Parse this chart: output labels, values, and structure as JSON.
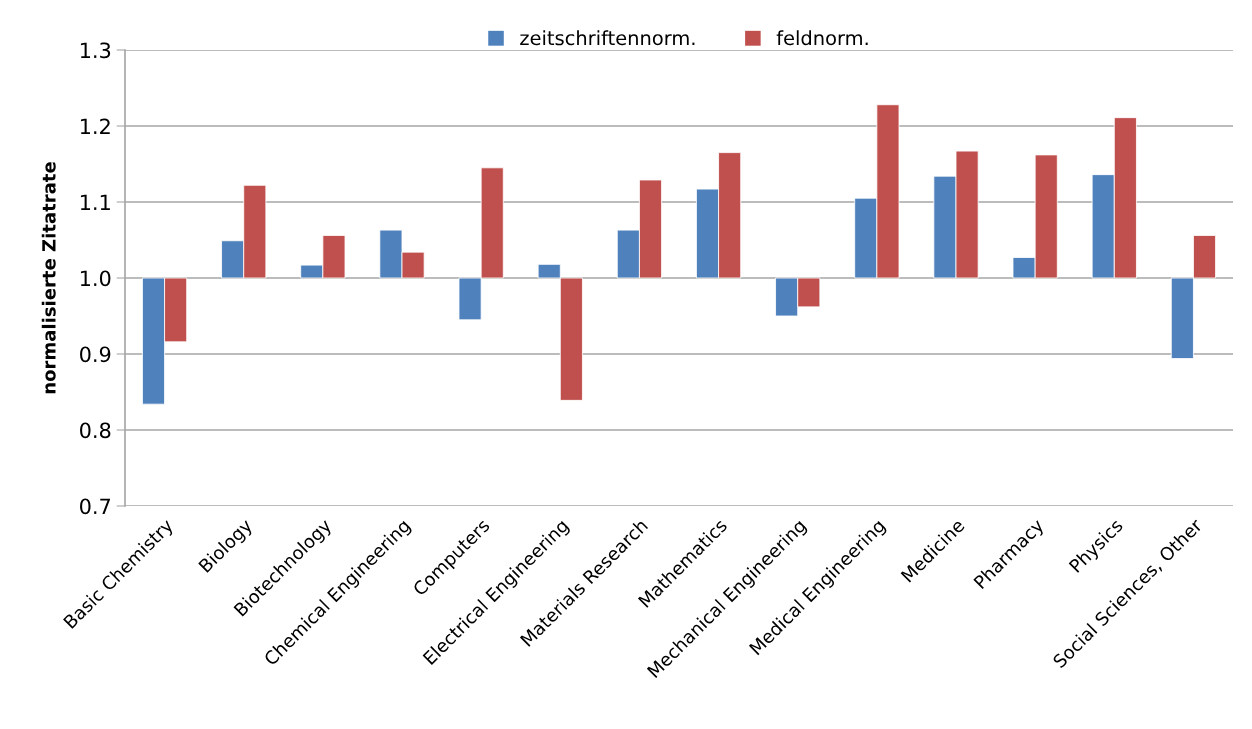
{
  "chart_data": {
    "type": "bar",
    "ylabel": "normalisierte Zitatrate",
    "categories": [
      "Basic Chemistry",
      "Biology",
      "Biotechnology",
      "Chemical Engineering",
      "Computers",
      "Electrical Engineering",
      "Materials Research",
      "Mathematics",
      "Mechanical Engineering",
      "Medical Engineering",
      "Medicine",
      "Pharmacy",
      "Physics",
      "Social Sciences, Other"
    ],
    "series": [
      {
        "name": "zeitschriftennorm.",
        "color": "#4f81bd",
        "base": [
          1.0,
          1.0,
          1.0,
          1.0,
          1.0,
          1.0,
          1.0,
          1.0,
          1.0,
          1.0,
          1.0,
          1.0,
          1.0,
          1.0
        ],
        "values": [
          -0.166,
          0.049,
          0.017,
          0.063,
          -0.055,
          0.018,
          0.063,
          0.117,
          -0.05,
          0.105,
          0.134,
          0.027,
          0.136,
          -0.106
        ]
      },
      {
        "name": "feldnorm.",
        "color": "#c0504d",
        "base": [
          1.0,
          1.0,
          1.0,
          1.0,
          1.0,
          1.0,
          1.0,
          1.0,
          1.0,
          1.0,
          1.0,
          1.0,
          1.0,
          1.0
        ],
        "values": [
          -0.084,
          0.122,
          0.056,
          0.034,
          0.145,
          -0.161,
          0.129,
          0.165,
          -0.038,
          0.228,
          0.167,
          0.162,
          0.211,
          0.056
        ]
      }
    ],
    "ylim": [
      0.7,
      1.3
    ],
    "yticks": [
      {
        "value": 0.7,
        "label": "0.7"
      },
      {
        "value": 0.8,
        "label": "0.8"
      },
      {
        "value": 0.9,
        "label": "0.9"
      },
      {
        "value": 1.0,
        "label": "1.0"
      },
      {
        "value": 1.1,
        "label": "1.1"
      },
      {
        "value": 1.2,
        "label": "1.2"
      },
      {
        "value": 1.3,
        "label": "1.3"
      }
    ],
    "grid": "y",
    "legend": "top"
  }
}
